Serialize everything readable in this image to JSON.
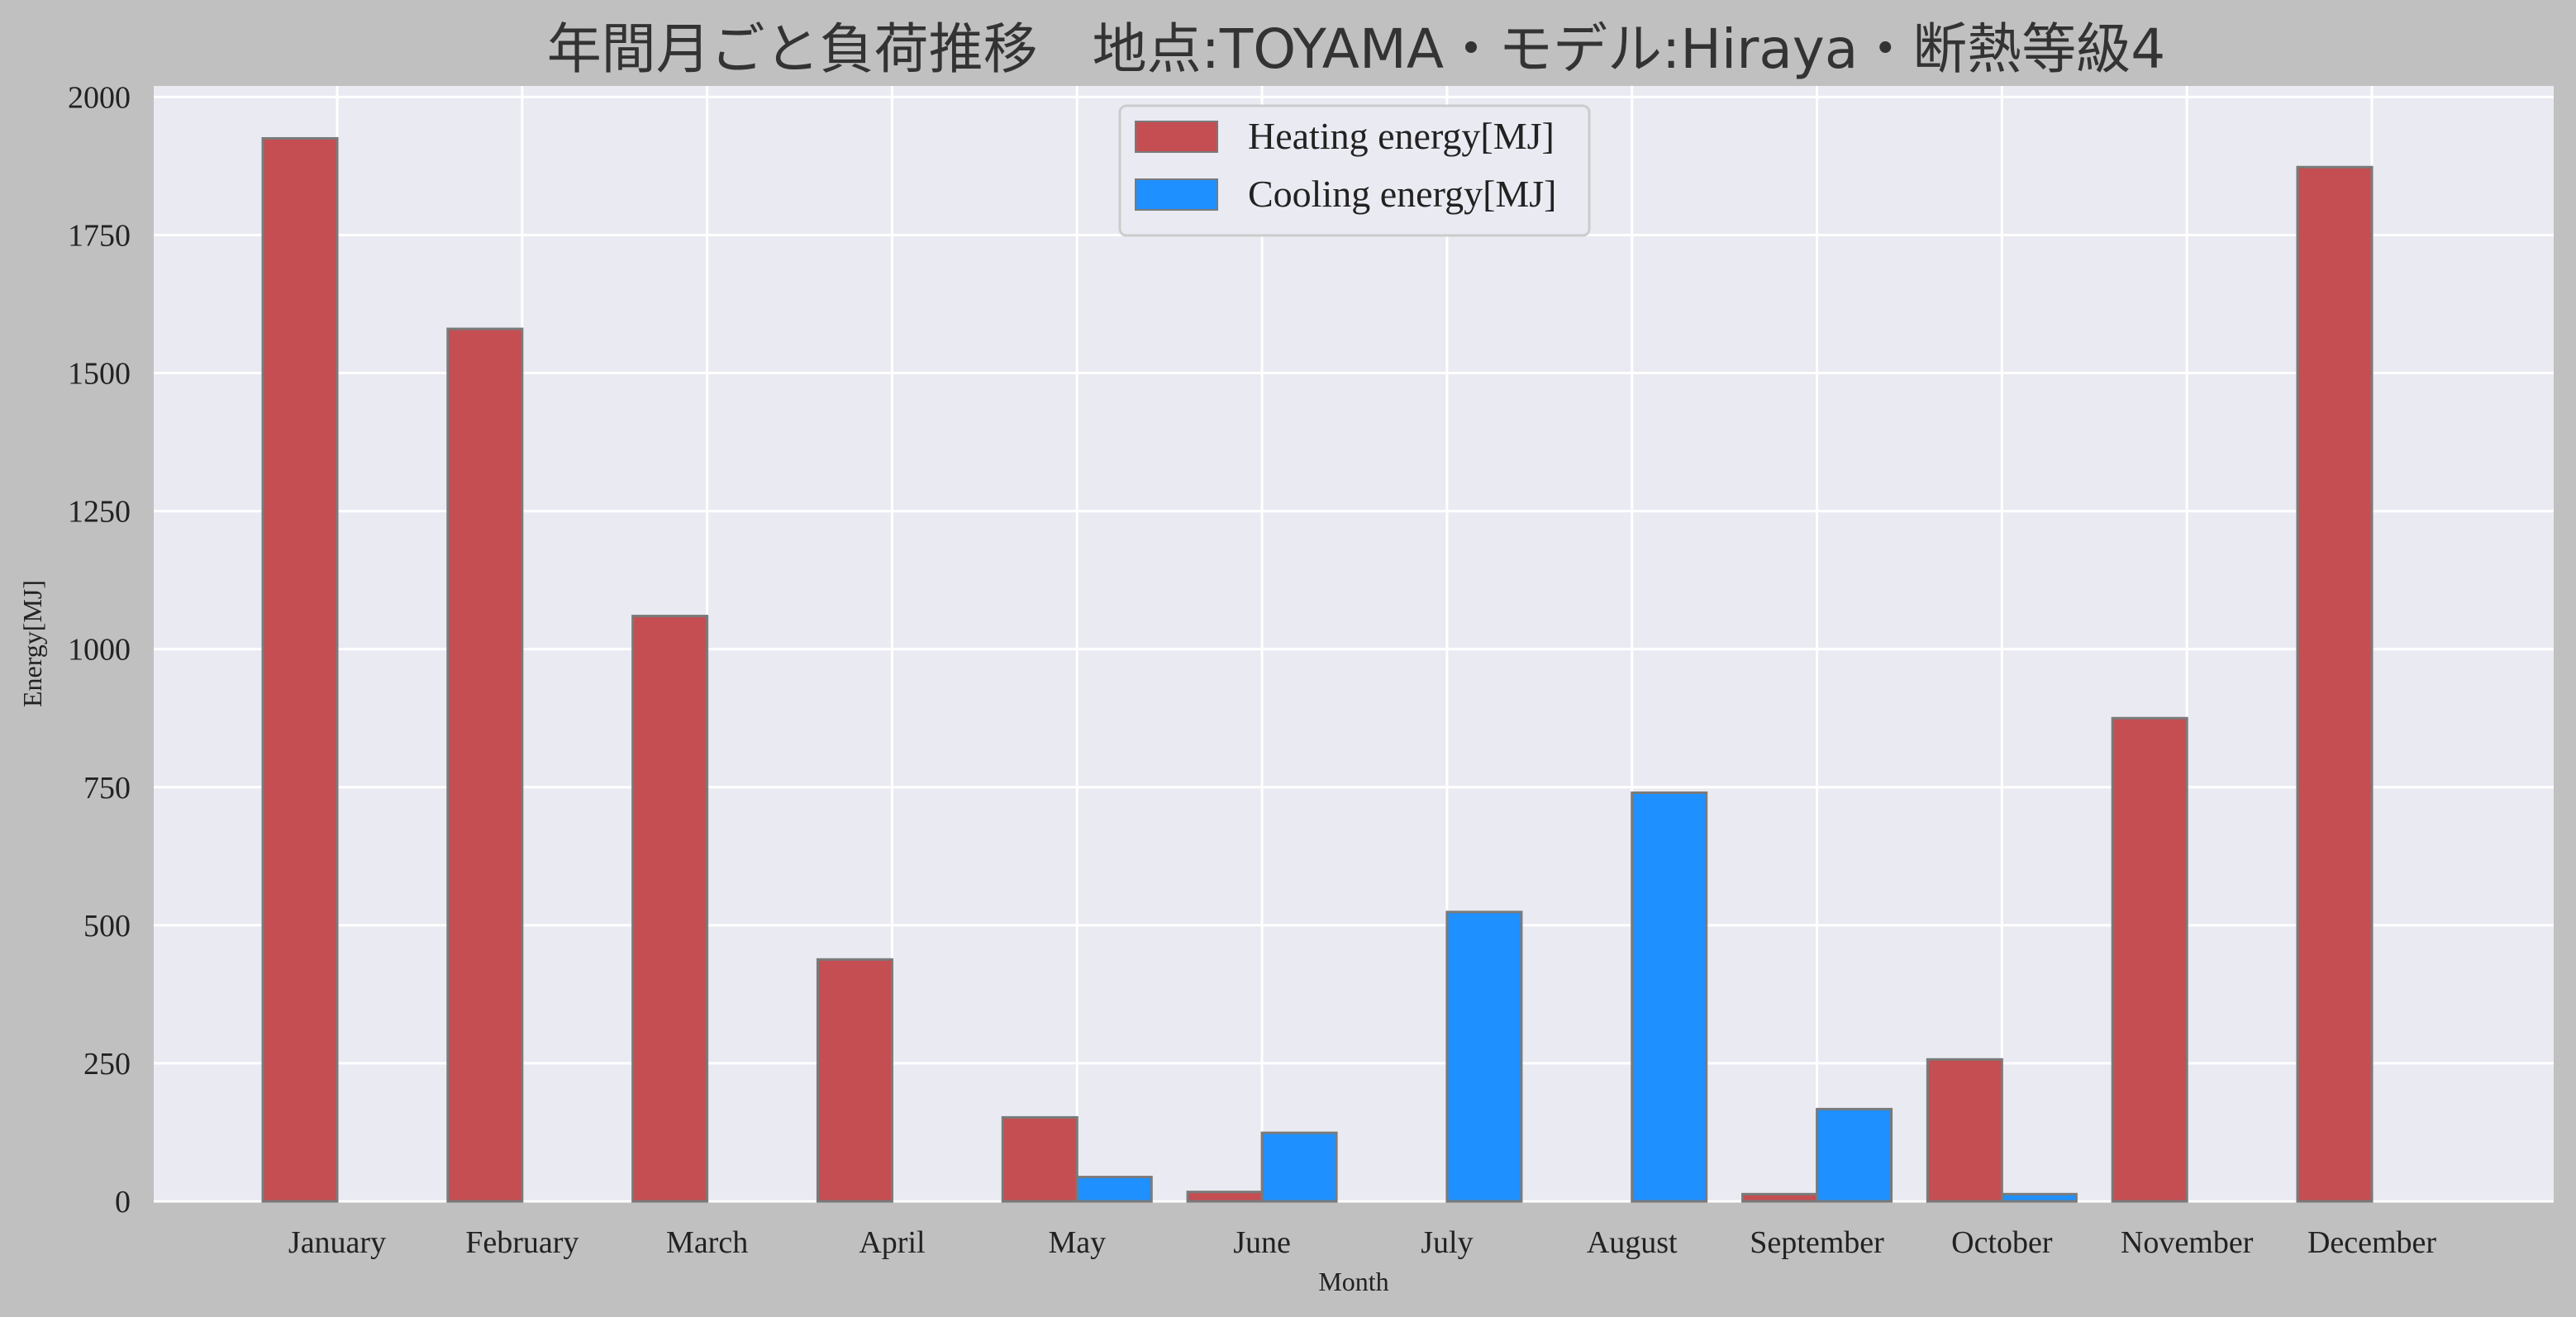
{
  "chart_data": {
    "type": "bar",
    "title": "年間月ごと負荷推移　地点:TOYAMA・モデル:Hiraya・断熱等級4",
    "xlabel": "Month",
    "ylabel": "Energy[MJ]",
    "ylim": [
      0,
      2020
    ],
    "yticks": [
      0,
      250,
      500,
      750,
      1000,
      1250,
      1500,
      1750,
      2000
    ],
    "grid": true,
    "legend_position": "top-center",
    "categories": [
      "January",
      "February",
      "March",
      "April",
      "May",
      "June",
      "July",
      "August",
      "September",
      "October",
      "November",
      "December"
    ],
    "series": [
      {
        "name": "Heating energy[MJ]",
        "color": "#c44e52",
        "values": [
          1925,
          1580,
          1060,
          438,
          152,
          17,
          0,
          0,
          13,
          257,
          875,
          1873
        ]
      },
      {
        "name": "Cooling energy[MJ]",
        "color": "#1e90ff",
        "values": [
          0,
          0,
          0,
          0,
          44,
          124,
          524,
          740,
          167,
          13,
          0,
          0
        ]
      }
    ]
  }
}
